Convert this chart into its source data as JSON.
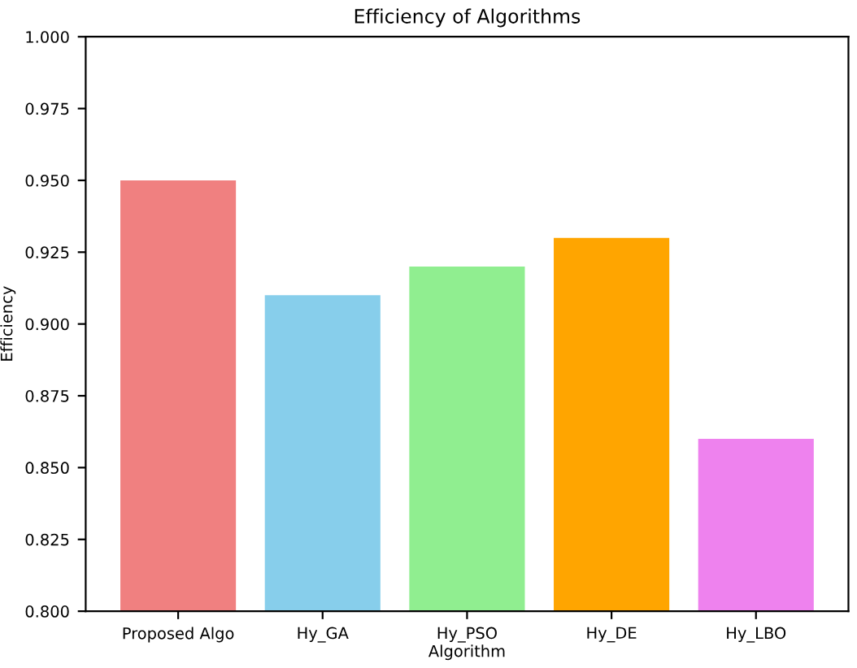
{
  "chart_data": {
    "type": "bar",
    "title": "Efficiency of Algorithms",
    "xlabel": "Algorithm",
    "ylabel": "Efficiency",
    "categories": [
      "Proposed Algo",
      "Hy_GA",
      "Hy_PSO",
      "Hy_DE",
      "Hy_LBO"
    ],
    "values": [
      0.95,
      0.91,
      0.92,
      0.93,
      0.86
    ],
    "colors": [
      "#f08080",
      "#87ceeb",
      "#90ee90",
      "#ffa500",
      "#ee82ee"
    ],
    "ylim": [
      0.8,
      1.0
    ],
    "yticks": [
      {
        "value": 0.8,
        "label": "0.800"
      },
      {
        "value": 0.825,
        "label": "0.825"
      },
      {
        "value": 0.85,
        "label": "0.850"
      },
      {
        "value": 0.875,
        "label": "0.875"
      },
      {
        "value": 0.9,
        "label": "0.900"
      },
      {
        "value": 0.925,
        "label": "0.925"
      },
      {
        "value": 0.95,
        "label": "0.950"
      },
      {
        "value": 0.975,
        "label": "0.975"
      },
      {
        "value": 1.0,
        "label": "1.000"
      }
    ]
  }
}
